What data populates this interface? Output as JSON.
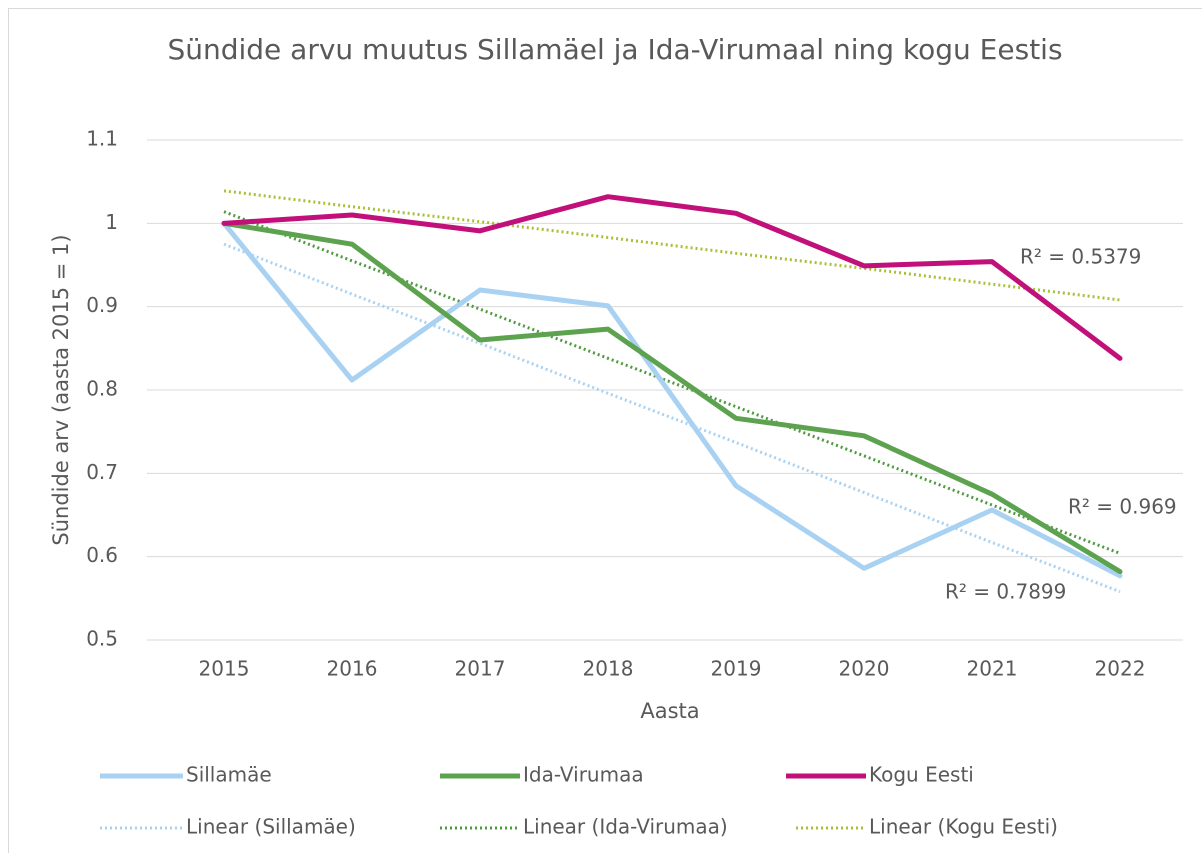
{
  "chart_data": {
    "type": "line",
    "title": "Sündide arvu muutus Sillamäel ja Ida-Virumaal ning kogu Eestis",
    "x_label": "Aasta",
    "y_label": "Sündide arv (aasta 2015 = 1)",
    "categories": [
      "2015",
      "2016",
      "2017",
      "2018",
      "2019",
      "2020",
      "2021",
      "2022"
    ],
    "ylim": [
      0.5,
      1.1
    ],
    "yticks": [
      0.5,
      0.6,
      0.7,
      0.8,
      0.9,
      1,
      1.1
    ],
    "grid": true,
    "legend": "bottom",
    "series": [
      {
        "name": "Sillamäe",
        "color": "#a9d2f2",
        "dashed": false,
        "values": [
          1.0,
          0.812,
          0.92,
          0.901,
          0.685,
          0.586,
          0.656,
          0.577
        ]
      },
      {
        "name": "Ida-Virumaa",
        "color": "#5da34f",
        "dashed": false,
        "values": [
          1.0,
          0.975,
          0.86,
          0.873,
          0.766,
          0.745,
          0.675,
          0.582
        ]
      },
      {
        "name": "Kogu Eesti",
        "color": "#c1107a",
        "dashed": false,
        "values": [
          1.0,
          1.01,
          0.991,
          1.032,
          1.012,
          0.949,
          0.954,
          0.838
        ]
      },
      {
        "name": "Linear (Sillamäe)",
        "color": "#a9d2f2",
        "dashed": true,
        "values": [
          0.975,
          0.915,
          0.856,
          0.796,
          0.737,
          0.677,
          0.617,
          0.558
        ]
      },
      {
        "name": "Linear (Ida-Virumaa)",
        "color": "#4e9a3e",
        "dashed": true,
        "values": [
          1.014,
          0.955,
          0.897,
          0.838,
          0.78,
          0.721,
          0.662,
          0.604
        ]
      },
      {
        "name": "Linear (Kogu Eesti)",
        "color": "#a6c134",
        "dashed": true,
        "values": [
          1.039,
          1.02,
          1.002,
          0.983,
          0.964,
          0.946,
          0.927,
          0.908
        ]
      }
    ],
    "annotations": [
      "R² = 0.5379",
      "R² = 0.969",
      "R² = 0.7899"
    ]
  }
}
